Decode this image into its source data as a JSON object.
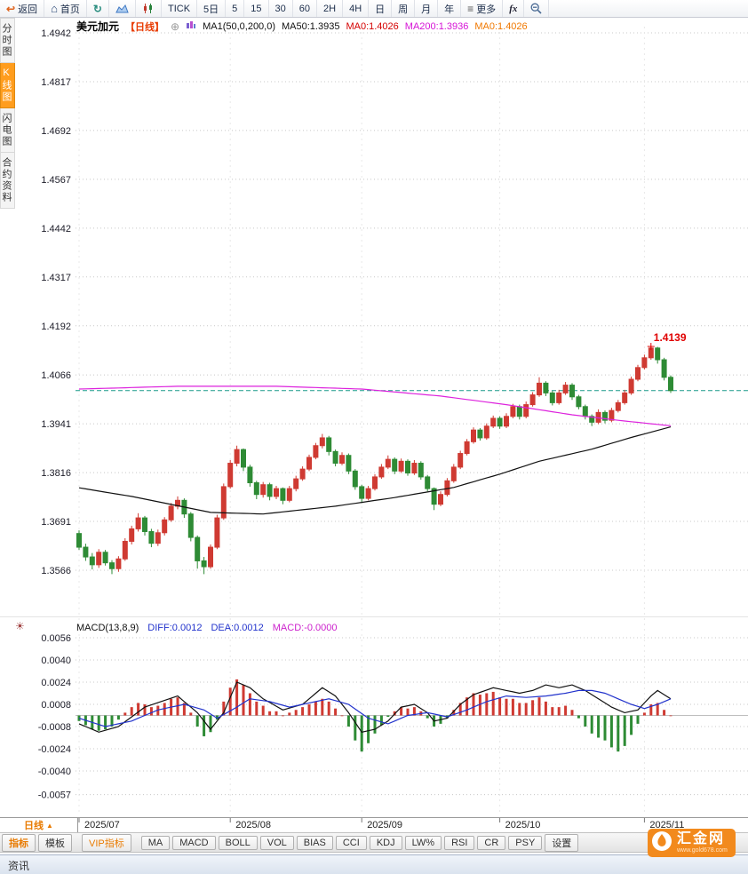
{
  "icons": {
    "back": "↩",
    "home": "⌂",
    "refresh": "↻",
    "menu": "≡",
    "plus_circle": "⊕",
    "settings_sun": "☀",
    "period_arrow": "▲"
  },
  "colors": {
    "up": "#cf3a32",
    "down": "#2e8b35",
    "ma50": "#111111",
    "ma200": "#dd22dd",
    "last_price_line": "#1a9a8a",
    "diff": "#111111",
    "dea": "#2233cc",
    "grid": "#c8c8c8",
    "annotation": "#e00000",
    "axis_text": "#1c1c28"
  },
  "toolbar": {
    "items": [
      {
        "name": "back-button",
        "label": "返回",
        "icon": "back"
      },
      {
        "name": "home-button",
        "label": "首页",
        "icon": "home"
      },
      {
        "name": "refresh-button",
        "label": "",
        "icon": "refresh"
      },
      {
        "name": "area-chart-button",
        "label": "",
        "icon": "area"
      },
      {
        "name": "candle-chart-button",
        "label": "",
        "icon": "candle"
      },
      {
        "name": "tick-button",
        "label": "TICK"
      },
      {
        "name": "5day-button",
        "label": "5日"
      },
      {
        "name": "5min-button",
        "label": "5"
      },
      {
        "name": "15min-button",
        "label": "15"
      },
      {
        "name": "30min-button",
        "label": "30"
      },
      {
        "name": "60min-button",
        "label": "60"
      },
      {
        "name": "2h-button",
        "label": "2H"
      },
      {
        "name": "4h-button",
        "label": "4H"
      },
      {
        "name": "day-button",
        "label": "日"
      },
      {
        "name": "week-button",
        "label": "周"
      },
      {
        "name": "month-button",
        "label": "月"
      },
      {
        "name": "year-button",
        "label": "年"
      },
      {
        "name": "more-button",
        "label": "更多",
        "icon": "menu"
      },
      {
        "name": "fx-button",
        "label": "fx",
        "italic": true
      },
      {
        "name": "zoom-out-button",
        "label": "",
        "icon": "zoom"
      }
    ]
  },
  "sidebar": {
    "items": [
      {
        "name": "tab-time-chart",
        "label": "分时图",
        "active": false
      },
      {
        "name": "tab-kline-chart",
        "label": "K线图",
        "active": true
      },
      {
        "name": "tab-flash-chart",
        "label": "闪电图",
        "active": false
      },
      {
        "name": "tab-contract-info",
        "label": "合约资料",
        "active": false
      }
    ]
  },
  "legend": {
    "symbol": "美元加元",
    "period": "【日线】",
    "items": [
      {
        "text": "MA1(50,0,200,0)",
        "style": "color:#111111"
      },
      {
        "text": "MA50:1.3935",
        "style": "color:#111111"
      },
      {
        "text": "MA0:1.4026",
        "style": "color:#d40000"
      },
      {
        "text": "MA200:1.3936",
        "style": "color:#d613d6"
      },
      {
        "text": "MA0:1.4026",
        "style": "color:#f07800"
      }
    ]
  },
  "macd_header": {
    "title": "MACD(13,8,9)",
    "items": [
      {
        "text": "DIFF:0.0012",
        "style": "color:#2233cc"
      },
      {
        "text": "DEA:0.0012",
        "style": "color:#2233cc"
      },
      {
        "text": "MACD:-0.0000",
        "style": "color:#cc22cc"
      }
    ]
  },
  "bottom": {
    "period_label": "日线",
    "status": "资讯",
    "tabs": [
      {
        "name": "tab-indicator",
        "label": "指标",
        "style": "color:#e87a00;font-weight:bold"
      },
      {
        "name": "tab-template",
        "label": "模板",
        "style": "margin-right:8px"
      },
      {
        "name": "tab-vip-indicator",
        "label": "VIP指标",
        "style": "color:#e87a00;margin-right:8px"
      },
      {
        "name": "tab-ma",
        "label": "MA",
        "style": ""
      },
      {
        "name": "tab-macd",
        "label": "MACD",
        "style": ""
      },
      {
        "name": "tab-boll",
        "label": "BOLL",
        "style": ""
      },
      {
        "name": "tab-vol",
        "label": "VOL",
        "style": ""
      },
      {
        "name": "tab-bias",
        "label": "BIAS",
        "style": ""
      },
      {
        "name": "tab-cci",
        "label": "CCI",
        "style": ""
      },
      {
        "name": "tab-kdj",
        "label": "KDJ",
        "style": ""
      },
      {
        "name": "tab-lw",
        "label": "LW%",
        "style": ""
      },
      {
        "name": "tab-rsi",
        "label": "RSI",
        "style": ""
      },
      {
        "name": "tab-cr",
        "label": "CR",
        "style": ""
      },
      {
        "name": "tab-psy",
        "label": "PSY",
        "style": ""
      },
      {
        "name": "tab-settings",
        "label": "设置",
        "style": ""
      }
    ]
  },
  "logo": {
    "title": "汇金网",
    "subtitle": "www.gold678.com"
  },
  "chart_data": {
    "type": "candlestick",
    "symbol": "美元加元 (USD/CAD)",
    "period": "日线",
    "ylim": [
      1.3566,
      1.4942
    ],
    "y_axis": [
      "1.4942",
      "1.4817",
      "1.4692",
      "1.4567",
      "1.4442",
      "1.4317",
      "1.4192",
      "1.4066",
      "1.3941",
      "1.3816",
      "1.3691",
      "1.3566"
    ],
    "months": [
      {
        "label": "2025/07",
        "index": 0
      },
      {
        "label": "2025/08",
        "index": 23
      },
      {
        "label": "2025/09",
        "index": 43
      },
      {
        "label": "2025/10",
        "index": 64
      },
      {
        "label": "2025/11",
        "index": 86
      }
    ],
    "last_price": 1.4026,
    "high_annotation": "1.4139",
    "annotation_index": 87,
    "ma50_last": 1.3935,
    "ma200_last": 1.3936,
    "candles": [
      [
        1.366,
        1.3668,
        1.3618,
        1.3625
      ],
      [
        1.3625,
        1.3634,
        1.359,
        1.36
      ],
      [
        1.36,
        1.361,
        1.3568,
        1.358
      ],
      [
        1.358,
        1.362,
        1.3572,
        1.3612
      ],
      [
        1.3612,
        1.3618,
        1.3578,
        1.3585
      ],
      [
        1.3585,
        1.3592,
        1.3556,
        1.357
      ],
      [
        1.357,
        1.3602,
        1.3562,
        1.3595
      ],
      [
        1.3595,
        1.3648,
        1.359,
        1.364
      ],
      [
        1.364,
        1.368,
        1.3632,
        1.3672
      ],
      [
        1.3672,
        1.3712,
        1.3665,
        1.37
      ],
      [
        1.37,
        1.3705,
        1.3655,
        1.3665
      ],
      [
        1.3665,
        1.3672,
        1.3625,
        1.3635
      ],
      [
        1.3635,
        1.367,
        1.3628,
        1.3662
      ],
      [
        1.3662,
        1.3702,
        1.3655,
        1.3695
      ],
      [
        1.3695,
        1.3738,
        1.369,
        1.373
      ],
      [
        1.373,
        1.3755,
        1.3722,
        1.3745
      ],
      [
        1.3745,
        1.375,
        1.37,
        1.371
      ],
      [
        1.371,
        1.3715,
        1.364,
        1.365
      ],
      [
        1.365,
        1.3655,
        1.357,
        1.359
      ],
      [
        1.359,
        1.36,
        1.3556,
        1.3575
      ],
      [
        1.3575,
        1.3632,
        1.357,
        1.3625
      ],
      [
        1.3625,
        1.3708,
        1.362,
        1.37
      ],
      [
        1.37,
        1.3788,
        1.3695,
        1.378
      ],
      [
        1.378,
        1.3848,
        1.3775,
        1.384
      ],
      [
        1.384,
        1.3885,
        1.3832,
        1.3875
      ],
      [
        1.3875,
        1.3878,
        1.382,
        1.383
      ],
      [
        1.383,
        1.3836,
        1.378,
        1.379
      ],
      [
        1.379,
        1.3795,
        1.3748,
        1.376
      ],
      [
        1.376,
        1.3792,
        1.3752,
        1.3785
      ],
      [
        1.3785,
        1.379,
        1.3745,
        1.3755
      ],
      [
        1.3755,
        1.3782,
        1.3748,
        1.3775
      ],
      [
        1.3775,
        1.3778,
        1.3735,
        1.3745
      ],
      [
        1.3745,
        1.3782,
        1.374,
        1.3775
      ],
      [
        1.3775,
        1.3808,
        1.3768,
        1.38
      ],
      [
        1.38,
        1.3832,
        1.3795,
        1.3825
      ],
      [
        1.3825,
        1.3862,
        1.382,
        1.3855
      ],
      [
        1.3855,
        1.3892,
        1.385,
        1.3885
      ],
      [
        1.3885,
        1.3915,
        1.3878,
        1.3905
      ],
      [
        1.3905,
        1.391,
        1.386,
        1.387
      ],
      [
        1.387,
        1.3875,
        1.3832,
        1.384
      ],
      [
        1.384,
        1.3868,
        1.3835,
        1.386
      ],
      [
        1.386,
        1.3865,
        1.3812,
        1.382
      ],
      [
        1.382,
        1.3825,
        1.3772,
        1.378
      ],
      [
        1.378,
        1.3785,
        1.3738,
        1.375
      ],
      [
        1.375,
        1.3782,
        1.3745,
        1.3775
      ],
      [
        1.3775,
        1.3812,
        1.377,
        1.3805
      ],
      [
        1.3805,
        1.3838,
        1.38,
        1.383
      ],
      [
        1.383,
        1.386,
        1.3825,
        1.385
      ],
      [
        1.385,
        1.3855,
        1.3812,
        1.382
      ],
      [
        1.382,
        1.3852,
        1.3815,
        1.3845
      ],
      [
        1.3845,
        1.385,
        1.3808,
        1.3815
      ],
      [
        1.3815,
        1.3848,
        1.381,
        1.384
      ],
      [
        1.384,
        1.3845,
        1.3798,
        1.3805
      ],
      [
        1.3805,
        1.381,
        1.3768,
        1.3775
      ],
      [
        1.3775,
        1.3778,
        1.372,
        1.3735
      ],
      [
        1.3735,
        1.3768,
        1.373,
        1.376
      ],
      [
        1.376,
        1.3802,
        1.3755,
        1.3795
      ],
      [
        1.3795,
        1.3838,
        1.379,
        1.383
      ],
      [
        1.383,
        1.3872,
        1.3825,
        1.3865
      ],
      [
        1.3865,
        1.3902,
        1.386,
        1.3895
      ],
      [
        1.3895,
        1.3932,
        1.389,
        1.3925
      ],
      [
        1.3925,
        1.393,
        1.3898,
        1.3905
      ],
      [
        1.3905,
        1.3942,
        1.39,
        1.3935
      ],
      [
        1.3935,
        1.3962,
        1.393,
        1.3955
      ],
      [
        1.3955,
        1.396,
        1.3928,
        1.3935
      ],
      [
        1.3935,
        1.3968,
        1.393,
        1.396
      ],
      [
        1.396,
        1.3992,
        1.3955,
        1.3985
      ],
      [
        1.3985,
        1.399,
        1.3952,
        1.396
      ],
      [
        1.396,
        1.3998,
        1.3955,
        1.399
      ],
      [
        1.399,
        1.4022,
        1.3985,
        1.4015
      ],
      [
        1.4015,
        1.406,
        1.401,
        1.4045
      ],
      [
        1.4045,
        1.405,
        1.4012,
        1.402
      ],
      [
        1.402,
        1.4025,
        1.3988,
        1.3995
      ],
      [
        1.3995,
        1.4028,
        1.399,
        1.402
      ],
      [
        1.402,
        1.4048,
        1.4015,
        1.404
      ],
      [
        1.404,
        1.4045,
        1.4002,
        1.401
      ],
      [
        1.401,
        1.4015,
        1.3978,
        1.3985
      ],
      [
        1.3985,
        1.399,
        1.3952,
        1.396
      ],
      [
        1.396,
        1.3965,
        1.3935,
        1.3945
      ],
      [
        1.3945,
        1.3978,
        1.394,
        1.397
      ],
      [
        1.397,
        1.3975,
        1.3942,
        1.395
      ],
      [
        1.395,
        1.3982,
        1.3945,
        1.3975
      ],
      [
        1.3975,
        1.4002,
        1.397,
        1.3995
      ],
      [
        1.3995,
        1.4028,
        1.399,
        1.402
      ],
      [
        1.402,
        1.4062,
        1.4015,
        1.4055
      ],
      [
        1.4055,
        1.4092,
        1.405,
        1.4085
      ],
      [
        1.4085,
        1.4118,
        1.408,
        1.411
      ],
      [
        1.411,
        1.4139,
        1.4105,
        1.4135
      ],
      [
        1.4135,
        1.4138,
        1.4095,
        1.4105
      ],
      [
        1.4105,
        1.411,
        1.4052,
        1.406
      ],
      [
        1.406,
        1.4065,
        1.402,
        1.4026
      ]
    ],
    "ma50_anchors": [
      [
        0,
        1.3777
      ],
      [
        8,
        1.3755
      ],
      [
        20,
        1.3714
      ],
      [
        28,
        1.371
      ],
      [
        39,
        1.373
      ],
      [
        48,
        1.3752
      ],
      [
        57,
        1.3778
      ],
      [
        64,
        1.3812
      ],
      [
        70,
        1.3845
      ],
      [
        78,
        1.3876
      ],
      [
        84,
        1.3906
      ],
      [
        90,
        1.3933
      ]
    ],
    "ma200_anchors": [
      [
        0,
        1.403
      ],
      [
        15,
        1.4037
      ],
      [
        30,
        1.4037
      ],
      [
        43,
        1.403
      ],
      [
        55,
        1.4012
      ],
      [
        65,
        1.399
      ],
      [
        75,
        1.3964
      ],
      [
        83,
        1.3948
      ],
      [
        90,
        1.3936
      ]
    ],
    "macd": {
      "params": "(13,8,9)",
      "diff_last": 0.0012,
      "dea_last": 0.0012,
      "macd_last": 0.0,
      "ylim": [
        -0.0057,
        0.0056
      ],
      "y_axis": [
        "0.0056",
        "0.0040",
        "0.0024",
        "0.0008",
        "-0.0008",
        "-0.0024",
        "-0.0040",
        "-0.0057"
      ],
      "hist": [
        -0.0004,
        -0.0007,
        -0.001,
        -0.0011,
        -0.001,
        -0.0008,
        -0.0003,
        0.0002,
        0.0006,
        0.0009,
        0.0008,
        0.0006,
        0.0007,
        0.0009,
        0.0012,
        0.0013,
        0.0009,
        0.0002,
        -0.0008,
        -0.0015,
        -0.0012,
        -0.0003,
        0.001,
        0.002,
        0.0026,
        0.0022,
        0.0016,
        0.001,
        0.0007,
        0.0003,
        0.0003,
        0.0,
        0.0002,
        0.0004,
        0.0006,
        0.0008,
        0.001,
        0.0012,
        0.001,
        0.0005,
        0.0,
        -0.0008,
        -0.0018,
        -0.0026,
        -0.002,
        -0.0013,
        -0.0007,
        -0.0001,
        0.0003,
        0.0006,
        0.0005,
        0.0006,
        0.0003,
        -0.0002,
        -0.0008,
        -0.0006,
        -0.0002,
        0.0004,
        0.0009,
        0.0013,
        0.0016,
        0.0015,
        0.0016,
        0.0017,
        0.0013,
        0.0012,
        0.0012,
        0.0009,
        0.0009,
        0.0011,
        0.0013,
        0.001,
        0.0006,
        0.0006,
        0.0007,
        0.0004,
        -0.0002,
        -0.0008,
        -0.0013,
        -0.0016,
        -0.0018,
        -0.0023,
        -0.0026,
        -0.0022,
        -0.0014,
        -0.0006,
        0.0002,
        0.0008,
        0.0009,
        0.0004,
        0.0
      ],
      "diff_anchors": [
        [
          0,
          -0.0006
        ],
        [
          3,
          -0.0012
        ],
        [
          6,
          -0.0008
        ],
        [
          10,
          0.0006
        ],
        [
          15,
          0.0014
        ],
        [
          18,
          0.0002
        ],
        [
          20,
          -0.001
        ],
        [
          22,
          0.0002
        ],
        [
          24,
          0.0024
        ],
        [
          26,
          0.002
        ],
        [
          28,
          0.0012
        ],
        [
          31,
          0.0004
        ],
        [
          34,
          0.0008
        ],
        [
          37,
          0.002
        ],
        [
          39,
          0.0014
        ],
        [
          41,
          0.0002
        ],
        [
          43,
          -0.0012
        ],
        [
          45,
          -0.001
        ],
        [
          47,
          -0.0004
        ],
        [
          49,
          0.0006
        ],
        [
          51,
          0.0008
        ],
        [
          53,
          0.0002
        ],
        [
          54,
          -0.0004
        ],
        [
          56,
          -0.0002
        ],
        [
          58,
          0.0008
        ],
        [
          60,
          0.0015
        ],
        [
          63,
          0.002
        ],
        [
          65,
          0.0018
        ],
        [
          67,
          0.0016
        ],
        [
          69,
          0.0018
        ],
        [
          71,
          0.0022
        ],
        [
          73,
          0.002
        ],
        [
          75,
          0.0022
        ],
        [
          77,
          0.0018
        ],
        [
          79,
          0.0012
        ],
        [
          81,
          0.0006
        ],
        [
          83,
          0.0002
        ],
        [
          85,
          0.0004
        ],
        [
          87,
          0.0014
        ],
        [
          88,
          0.0018
        ],
        [
          89,
          0.0015
        ],
        [
          90,
          0.0012
        ]
      ],
      "dea_anchors": [
        [
          0,
          -0.0002
        ],
        [
          4,
          -0.0008
        ],
        [
          8,
          -0.0004
        ],
        [
          12,
          0.0004
        ],
        [
          16,
          0.0008
        ],
        [
          19,
          0.0004
        ],
        [
          21,
          -0.0002
        ],
        [
          24,
          0.0006
        ],
        [
          26,
          0.0012
        ],
        [
          29,
          0.001
        ],
        [
          32,
          0.0006
        ],
        [
          36,
          0.001
        ],
        [
          38,
          0.0012
        ],
        [
          41,
          0.0008
        ],
        [
          44,
          -0.0002
        ],
        [
          47,
          -0.0006
        ],
        [
          50,
          0.0
        ],
        [
          53,
          0.0002
        ],
        [
          56,
          -0.0001
        ],
        [
          59,
          0.0004
        ],
        [
          62,
          0.001
        ],
        [
          65,
          0.0014
        ],
        [
          68,
          0.0013
        ],
        [
          71,
          0.0014
        ],
        [
          74,
          0.0016
        ],
        [
          76,
          0.0018
        ],
        [
          78,
          0.0018
        ],
        [
          80,
          0.0016
        ],
        [
          82,
          0.0012
        ],
        [
          84,
          0.0008
        ],
        [
          86,
          0.0005
        ],
        [
          88,
          0.0008
        ],
        [
          90,
          0.0012
        ]
      ]
    }
  }
}
